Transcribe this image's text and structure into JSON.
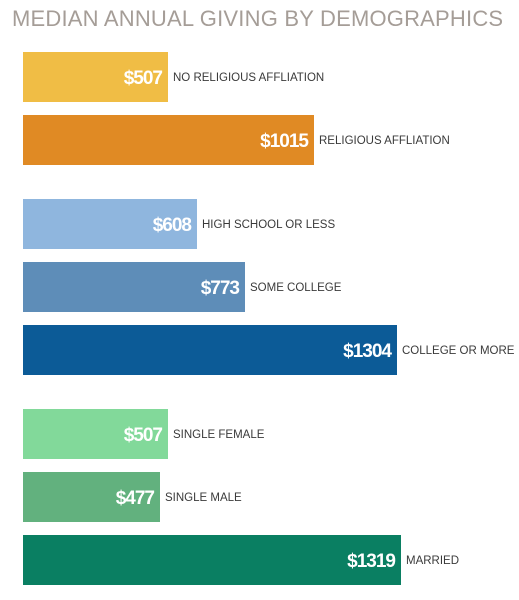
{
  "chart_data": {
    "type": "bar",
    "orientation": "horizontal",
    "title": "MEDIAN ANNUAL GIVING BY DEMOGRAPHICS",
    "groups": [
      {
        "bars": [
          {
            "label": "NO RELIGIOUS AFFLIATION",
            "value": 507,
            "value_label": "$507",
            "color": "#f0bd45"
          },
          {
            "label": "RELIGIOUS AFFLIATION",
            "value": 1015,
            "value_label": "$1015",
            "color": "#e08a24"
          }
        ]
      },
      {
        "bars": [
          {
            "label": "HIGH SCHOOL OR LESS",
            "value": 608,
            "value_label": "$608",
            "color": "#8fb6de"
          },
          {
            "label": "SOME COLLEGE",
            "value": 773,
            "value_label": "$773",
            "color": "#5e8db8"
          },
          {
            "label": "COLLEGE OR MORE",
            "value": 1304,
            "value_label": "$1304",
            "color": "#0c5b97"
          }
        ]
      },
      {
        "bars": [
          {
            "label": "SINGLE FEMALE",
            "value": 507,
            "value_label": "$507",
            "color": "#82d99a"
          },
          {
            "label": "SINGLE MALE",
            "value": 477,
            "value_label": "$477",
            "color": "#62b17e"
          },
          {
            "label": "MARRIED",
            "value": 1319,
            "value_label": "$1319",
            "color": "#0a7f62"
          }
        ]
      }
    ]
  }
}
